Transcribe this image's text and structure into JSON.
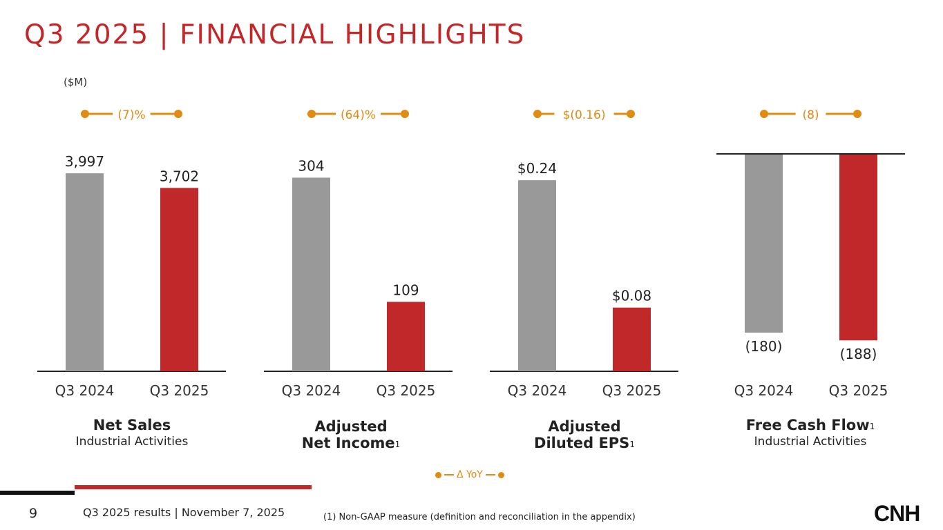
{
  "title": "Q3 2025 | FINANCIAL HIGHLIGHTS",
  "unit_label": "($M)",
  "colors": {
    "accent_red": "#c0282a",
    "prior_gray": "#999999",
    "delta_orange": "#e08b12"
  },
  "chart_data": [
    {
      "type": "bar",
      "name": "Net Sales",
      "categories": [
        "Q3 2024",
        "Q3 2025"
      ],
      "values": [
        3997,
        3702
      ],
      "value_labels": [
        "3,997",
        "3,702"
      ],
      "delta_label": "(7)%",
      "ylim": [
        0,
        4500
      ],
      "caption_main": "Net Sales",
      "caption_sup": "",
      "caption_sub": "Industrial Activities"
    },
    {
      "type": "bar",
      "name": "Adjusted Net Income",
      "categories": [
        "Q3 2024",
        "Q3 2025"
      ],
      "values": [
        304,
        109
      ],
      "value_labels": [
        "304",
        "109"
      ],
      "delta_label": "(64)%",
      "ylim": [
        0,
        350
      ],
      "caption_main": "Adjusted",
      "caption_main2": "Net Income",
      "caption_sup": "1",
      "caption_sub": ""
    },
    {
      "type": "bar",
      "name": "Adjusted Diluted EPS",
      "categories": [
        "Q3 2024",
        "Q3 2025"
      ],
      "values": [
        0.24,
        0.08
      ],
      "value_labels": [
        "$0.24",
        "$0.08"
      ],
      "delta_label": "$(0.16)",
      "ylim": [
        0,
        0.28
      ],
      "caption_main": "Adjusted",
      "caption_main2": "Diluted EPS",
      "caption_sup": "1",
      "caption_sub": ""
    },
    {
      "type": "bar",
      "name": "Free Cash Flow",
      "categories": [
        "Q3 2024",
        "Q3 2025"
      ],
      "values": [
        -180,
        -188
      ],
      "value_labels": [
        "(180)",
        "(188)"
      ],
      "delta_label": "(8)",
      "ylim": [
        -200,
        0
      ],
      "caption_main": "Free Cash Flow",
      "caption_sup": "1",
      "caption_sub": "Industrial Activities"
    }
  ],
  "legend": {
    "label": "Δ YoY"
  },
  "footer": {
    "page_number": "9",
    "text": "Q3 2025 results | November 7, 2025",
    "footnote": "(1) Non-GAAP measure (definition and reconciliation in the appendix)"
  },
  "logo_text": "CNH"
}
